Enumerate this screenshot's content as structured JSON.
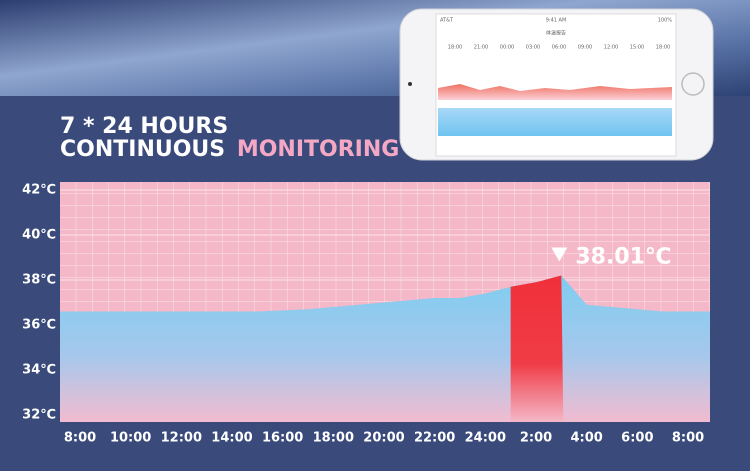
{
  "headline": {
    "line1": "7 * 24 HOURS",
    "line2a": "CONTINUOUS",
    "line2b": "MONITORING"
  },
  "phone": {
    "carrier": "AT&T",
    "clock": "9:41 AM",
    "battery": "100%",
    "title": "体温报告",
    "times": [
      "18:00",
      "21:00",
      "00:00",
      "03:00",
      "06:00",
      "09:00",
      "12:00",
      "15:00",
      "18:00"
    ]
  },
  "chart_data": {
    "type": "area",
    "categories": [
      "8:00",
      null,
      "10:00",
      null,
      "12:00",
      null,
      "14:00",
      null,
      "16:00",
      null,
      "18:00",
      null,
      "20:00",
      null,
      "22:00",
      null,
      "24:00",
      null,
      "2:00",
      null,
      "4:00",
      null,
      "6:00",
      null,
      "8:00"
    ],
    "values": [
      36.6,
      36.6,
      36.6,
      36.6,
      36.6,
      36.6,
      36.6,
      36.6,
      36.65,
      36.7,
      36.8,
      36.9,
      37.0,
      37.1,
      37.2,
      37.2,
      37.4,
      37.7,
      37.9,
      38.2,
      36.9,
      36.8,
      36.7,
      36.6,
      36.6
    ],
    "color": "#7ecdf0",
    "highlight_color": "#f0303a",
    "highlight_range": [
      17,
      19
    ],
    "annotation": "38.01℃",
    "ylim": [
      32,
      42
    ],
    "yticks": [
      {
        "value": 32,
        "label": "32℃"
      },
      {
        "value": 34,
        "label": "34℃"
      },
      {
        "value": 36,
        "label": "36℃"
      },
      {
        "value": 38,
        "label": "38℃"
      },
      {
        "value": 40,
        "label": "40℃"
      },
      {
        "value": 42,
        "label": "42℃"
      }
    ],
    "grid": true
  }
}
